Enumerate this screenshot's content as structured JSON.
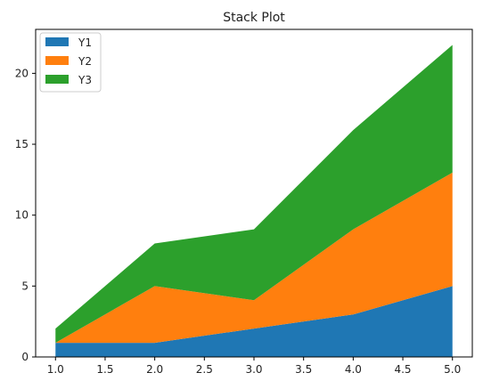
{
  "chart_data": {
    "type": "area",
    "stacked": true,
    "title": "Stack Plot",
    "xlabel": "",
    "ylabel": "",
    "x": [
      1.0,
      2.0,
      3.0,
      4.0,
      5.0
    ],
    "xlim": [
      0.8,
      5.2
    ],
    "ylim": [
      0,
      23.1
    ],
    "xticks": [
      1.0,
      1.5,
      2.0,
      2.5,
      3.0,
      3.5,
      4.0,
      4.5,
      5.0
    ],
    "xtick_labels": [
      "1.0",
      "1.5",
      "2.0",
      "2.5",
      "3.0",
      "3.5",
      "4.0",
      "4.5",
      "5.0"
    ],
    "yticks": [
      0,
      5,
      10,
      15,
      20
    ],
    "ytick_labels": [
      "0",
      "5",
      "10",
      "15",
      "20"
    ],
    "grid": false,
    "legend": {
      "position": "upper-left"
    },
    "series": [
      {
        "name": "Y1",
        "values": [
          1,
          1,
          2,
          3,
          5
        ],
        "color": "#1f77b4"
      },
      {
        "name": "Y2",
        "values": [
          0,
          4,
          2,
          6,
          8
        ],
        "color": "#ff7f0e"
      },
      {
        "name": "Y3",
        "values": [
          1,
          3,
          5,
          7,
          9
        ],
        "color": "#2ca02c"
      }
    ]
  }
}
